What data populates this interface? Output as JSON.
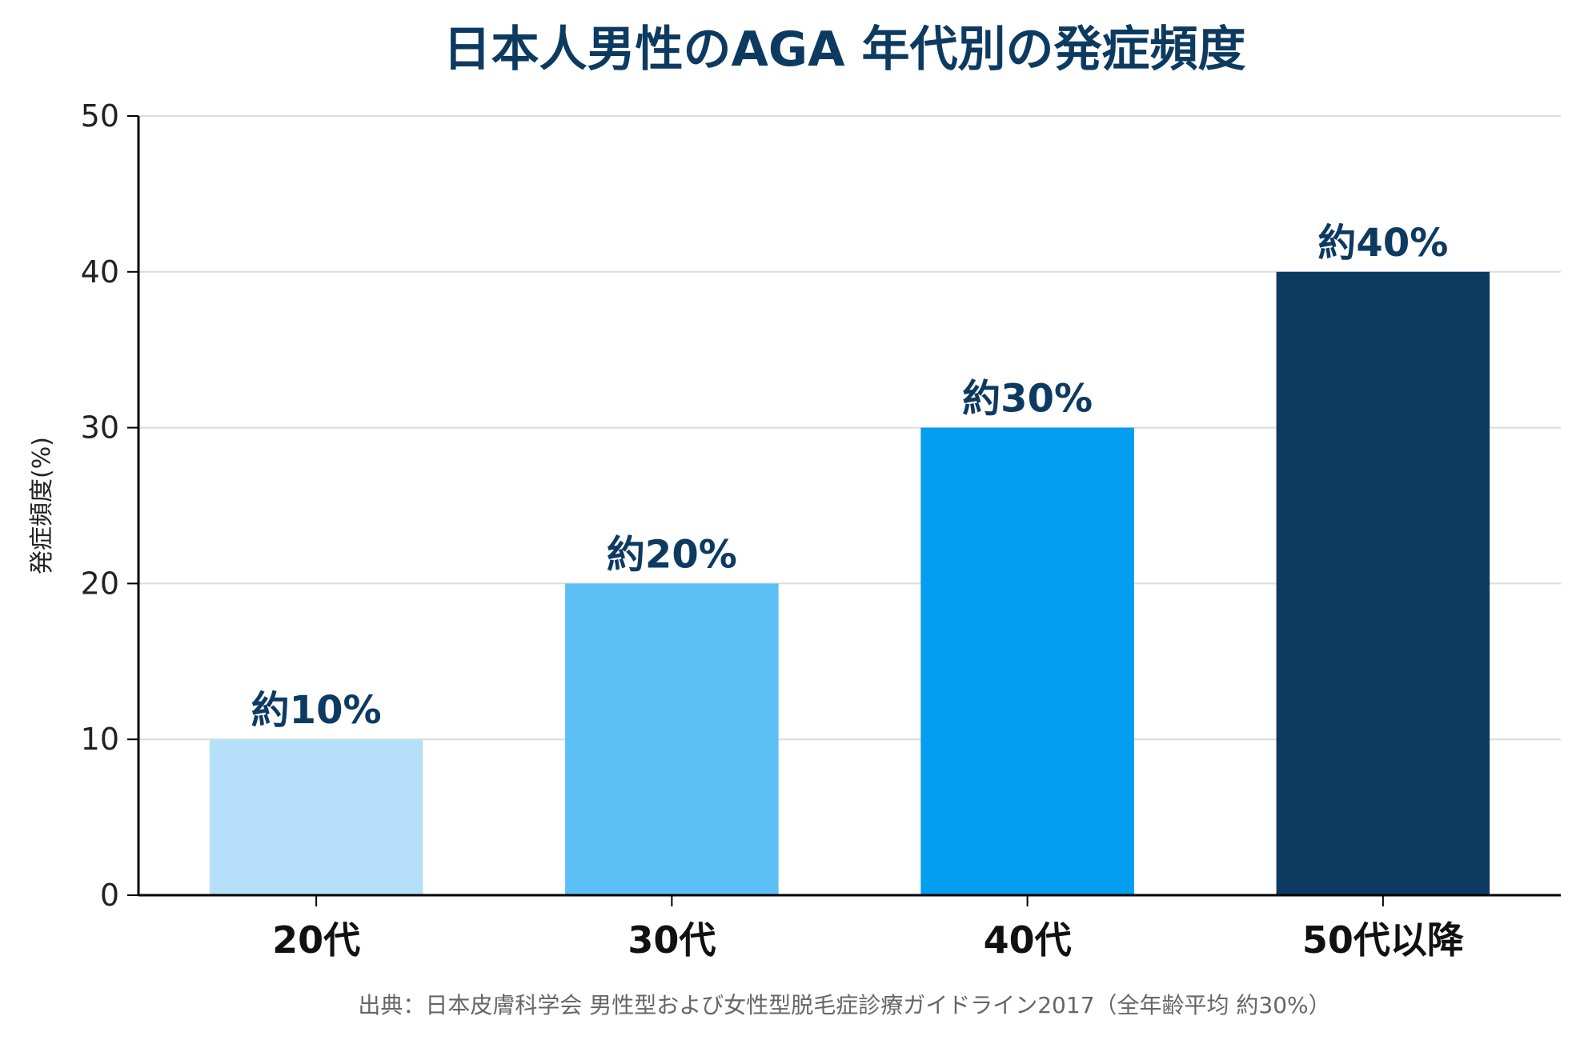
{
  "chart_data": {
    "type": "bar",
    "title": "日本人男性のAGA 年代別の発症頻度",
    "ylabel": "発症頻度(%)",
    "xlabel": "",
    "ylim": [
      0,
      50
    ],
    "yticks": [
      0,
      10,
      20,
      30,
      40,
      50
    ],
    "categories": [
      "20代",
      "30代",
      "40代",
      "50代以降"
    ],
    "values": [
      10,
      20,
      30,
      40
    ],
    "data_labels": [
      "約10%",
      "約20%",
      "約30%",
      "約40%"
    ],
    "bar_colors": [
      "#b6e0f9",
      "#5cc0f7",
      "#049ef0",
      "#0d3a61"
    ],
    "grid": true,
    "legend": "none",
    "source": "出典：日本皮膚科学会 男性型および女性型脱毛症診療ガイドライン2017（全年齢平均 約30%）"
  },
  "colors": {
    "title": "#0d3a61",
    "data_label": "#0d3a61",
    "axis": "#000000",
    "tick_text": "#222222",
    "x_label_text": "#111111",
    "grid": "#dcdcdc",
    "source_text": "#666666"
  }
}
